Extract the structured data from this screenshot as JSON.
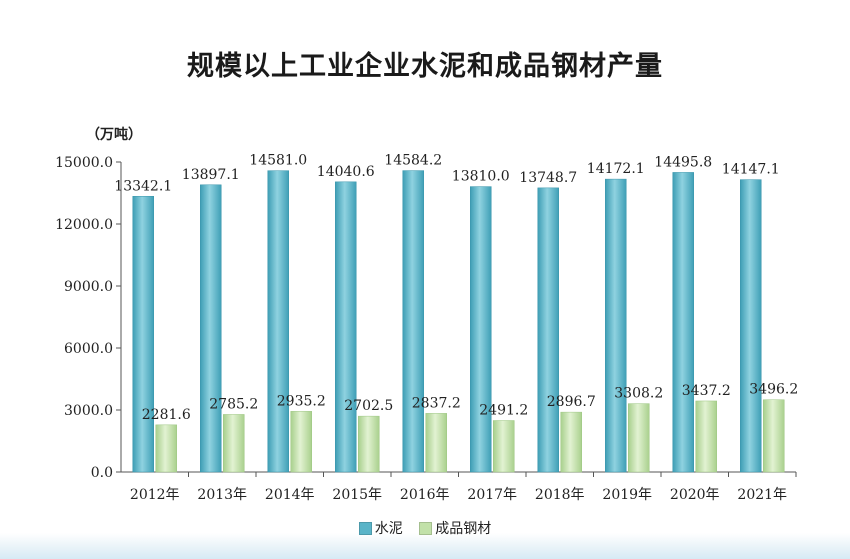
{
  "chart_data": {
    "type": "bar",
    "title": "规模以上工业企业水泥和成品钢材产量",
    "unit": "（万吨）",
    "categories": [
      "2012年",
      "2013年",
      "2014年",
      "2015年",
      "2016年",
      "2017年",
      "2018年",
      "2019年",
      "2020年",
      "2021年"
    ],
    "series": [
      {
        "name": "水泥",
        "color": "#5ab4c8",
        "values": [
          13342.1,
          13897.1,
          14581.0,
          14040.6,
          14584.2,
          13810.0,
          13748.7,
          14172.1,
          14495.8,
          14147.1
        ],
        "labels": [
          "13342.1",
          "13897.1",
          "14581.0",
          "14040.6",
          "14584.2",
          "13810.0",
          "13748.7",
          "14172.1",
          "14495.8",
          "14147.1"
        ]
      },
      {
        "name": "成品钢材",
        "color": "#c2e1a9",
        "values": [
          2281.6,
          2785.2,
          2935.2,
          2702.5,
          2837.2,
          2491.2,
          2896.7,
          3308.2,
          3437.2,
          3496.2
        ],
        "labels": [
          "2281.6",
          "2785.2",
          "2935.2",
          "2702.5",
          "2837.2",
          "2491.2",
          "2896.7",
          "3308.2",
          "3437.2",
          "3496.2"
        ]
      }
    ],
    "yticks": [
      "0.0",
      "3000.0",
      "6000.0",
      "9000.0",
      "12000.0",
      "15000.0"
    ],
    "ylim": [
      0,
      15000
    ],
    "grid": false,
    "legend_position": "bottom"
  }
}
